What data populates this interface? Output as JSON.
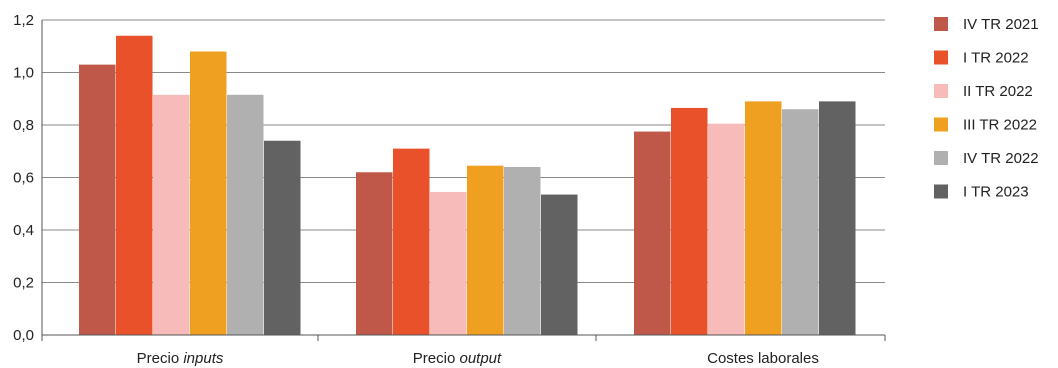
{
  "chart_data": {
    "type": "bar",
    "categories": [
      {
        "prefix": "Precio ",
        "emph": "inputs"
      },
      {
        "prefix": "Precio ",
        "emph": "output"
      },
      {
        "prefix": "Costes laborales",
        "emph": ""
      }
    ],
    "series": [
      {
        "name": "IV TR 2021",
        "color": "#c0584a",
        "values": [
          1.03,
          0.62,
          0.775
        ]
      },
      {
        "name": "I TR 2022",
        "color": "#e8512a",
        "values": [
          1.14,
          0.71,
          0.865
        ]
      },
      {
        "name": "II TR 2022",
        "color": "#f7bcb9",
        "values": [
          0.915,
          0.545,
          0.805
        ]
      },
      {
        "name": "III TR 2022",
        "color": "#f0a020",
        "values": [
          1.08,
          0.645,
          0.89
        ]
      },
      {
        "name": "IV TR 2022",
        "color": "#b0b0b0",
        "values": [
          0.915,
          0.64,
          0.86
        ]
      },
      {
        "name": "I TR 2023",
        "color": "#626262",
        "values": [
          0.74,
          0.535,
          0.89
        ]
      }
    ],
    "ylim": [
      0,
      1.2
    ],
    "yticks": [
      "0,0",
      "0,2",
      "0,4",
      "0,6",
      "0,8",
      "1,0",
      "1,2"
    ],
    "ytick_values": [
      0,
      0.2,
      0.4,
      0.6,
      0.8,
      1.0,
      1.2
    ],
    "grid": true,
    "legend_position": "right",
    "title": "",
    "xlabel": "",
    "ylabel": ""
  }
}
